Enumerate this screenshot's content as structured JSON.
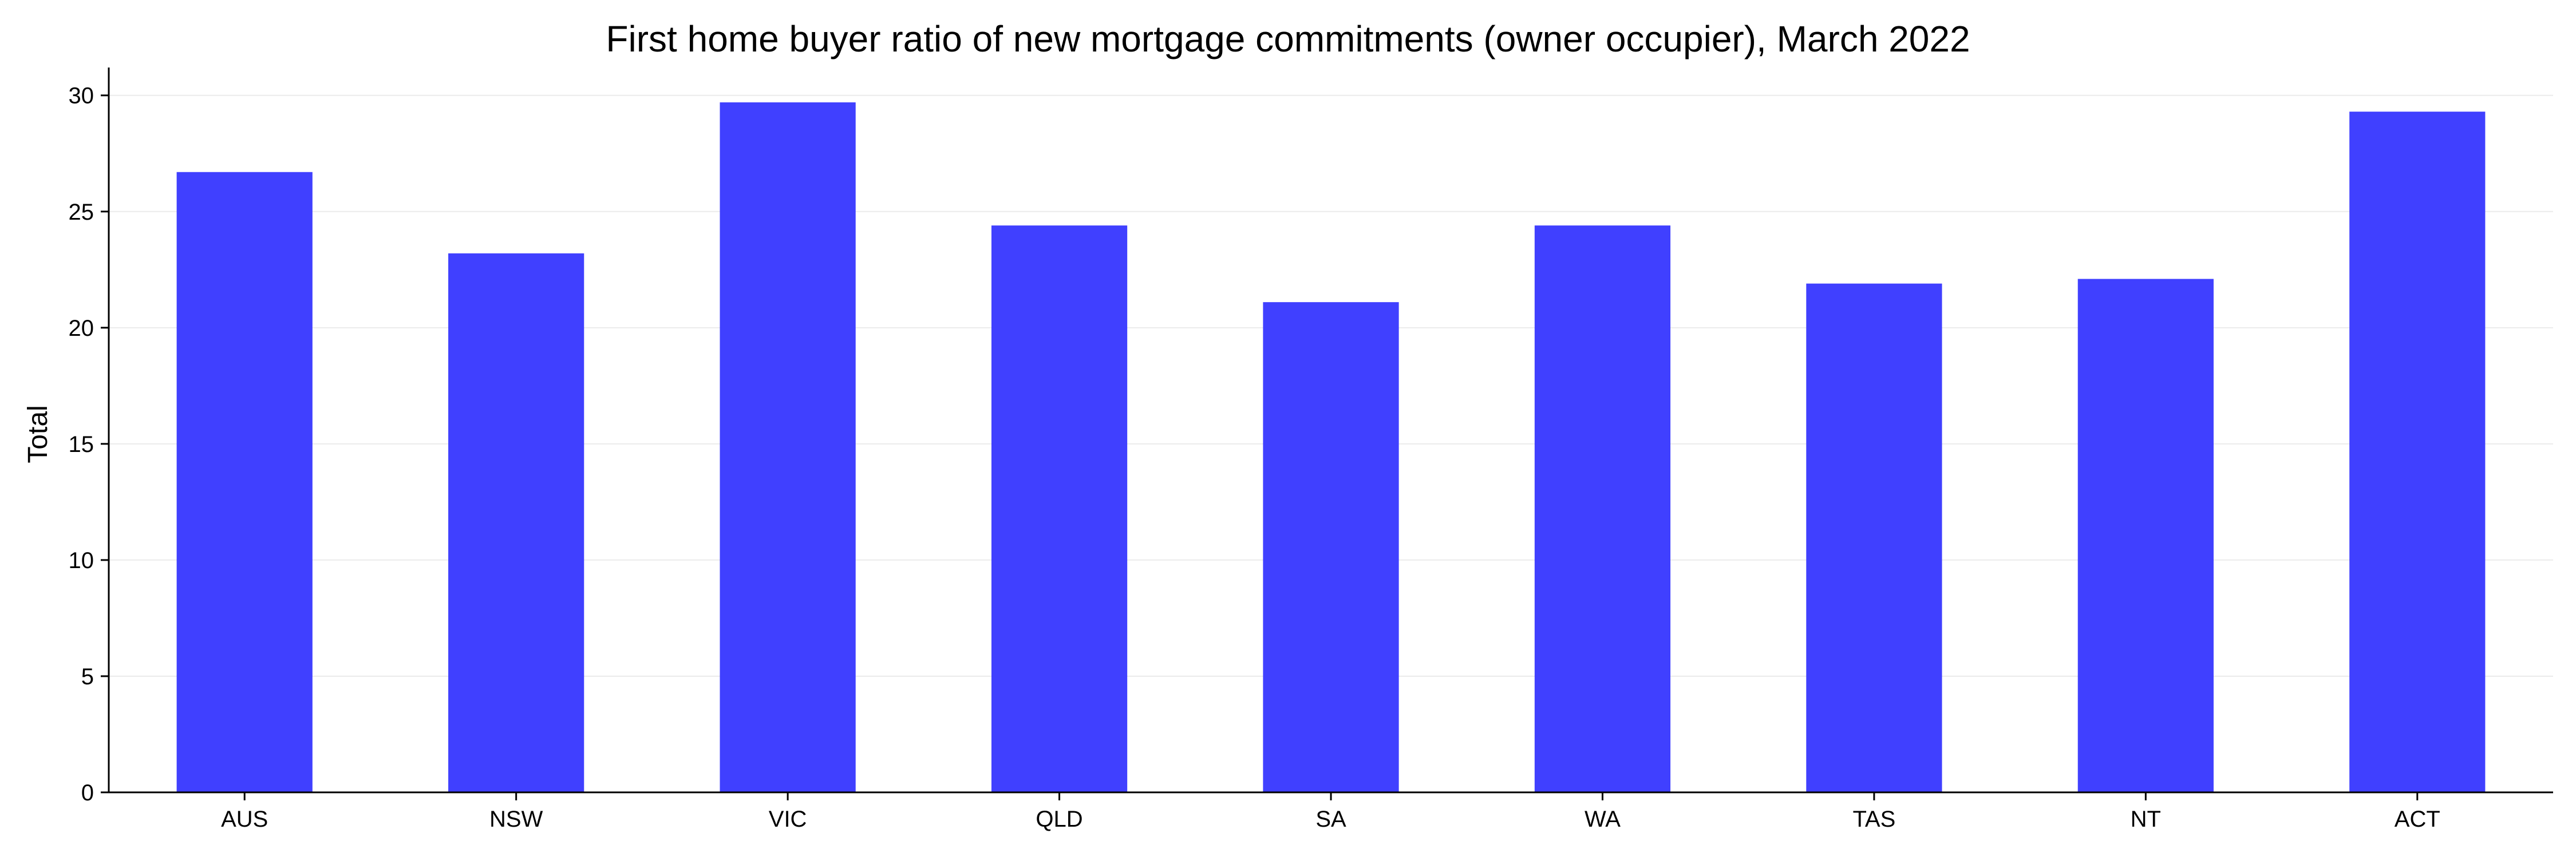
{
  "chart_data": {
    "type": "bar",
    "title": "First home buyer ratio of new mortgage commitments (owner occupier), March 2022",
    "xlabel": "",
    "ylabel": "Total",
    "categories": [
      "AUS",
      "NSW",
      "VIC",
      "QLD",
      "SA",
      "WA",
      "TAS",
      "NT",
      "ACT"
    ],
    "series": [
      {
        "values": [
          26.7,
          23.2,
          29.7,
          24.4,
          21.1,
          24.4,
          21.9,
          22.1,
          29.3
        ]
      }
    ],
    "ylim": [
      0,
      31.2
    ],
    "yticks": [
      0,
      5,
      10,
      15,
      20,
      25,
      30
    ],
    "grid": "horizontal",
    "legend": "none",
    "colors": {
      "bar": "#4040ff",
      "axis": "#000000",
      "grid": "#ebebeb",
      "background": "#ffffff"
    }
  }
}
